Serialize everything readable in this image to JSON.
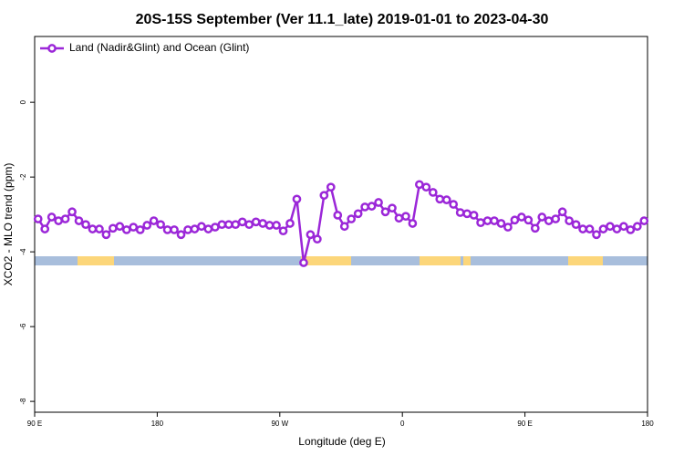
{
  "chart_data": {
    "type": "line",
    "title": "20S-15S September (Ver 11.1_late)   2019-01-01 to 2023-04-30",
    "x_label": "Longitude (deg E)",
    "y_label": "XCO2 - MLO trend (ppm)",
    "x": [
      92.5,
      97.5,
      102.5,
      107.5,
      112.5,
      117.5,
      122.5,
      127.5,
      132.5,
      137.5,
      142.5,
      147.5,
      152.5,
      157.5,
      162.5,
      167.5,
      172.5,
      177.5,
      182.5,
      187.5,
      192.5,
      197.5,
      202.5,
      207.5,
      212.5,
      217.5,
      222.5,
      227.5,
      232.5,
      237.5,
      242.5,
      247.5,
      252.5,
      257.5,
      262.5,
      267.5,
      272.5,
      277.5,
      282.5,
      287.5,
      292.5,
      297.5,
      302.5,
      307.5,
      312.5,
      317.5,
      322.5,
      327.5,
      332.5,
      337.5,
      342.5,
      347.5,
      352.5,
      357.5,
      362.5,
      367.5,
      372.5,
      377.5,
      382.5,
      387.5,
      392.5,
      397.5,
      402.5,
      407.5,
      412.5,
      417.5,
      422.5,
      427.5,
      432.5,
      437.5,
      442.5,
      447.5,
      452.5,
      457.5,
      462.5,
      467.5,
      472.5,
      477.5,
      482.5,
      487.5,
      492.5,
      497.5,
      502.5,
      507.5,
      512.5,
      517.5,
      522.5,
      527.5,
      532.5,
      537.5
    ],
    "series": [
      {
        "name": "Land (Nadir&Glint) and Ocean (Glint)",
        "color": "#9b27d8",
        "values": [
          -3.12,
          -3.39,
          -3.07,
          -3.17,
          -3.12,
          -2.93,
          -3.17,
          -3.27,
          -3.39,
          -3.39,
          -3.54,
          -3.37,
          -3.32,
          -3.41,
          -3.34,
          -3.41,
          -3.29,
          -3.17,
          -3.27,
          -3.41,
          -3.41,
          -3.54,
          -3.41,
          -3.39,
          -3.32,
          -3.39,
          -3.34,
          -3.27,
          -3.27,
          -3.27,
          -3.2,
          -3.27,
          -3.2,
          -3.24,
          -3.29,
          -3.29,
          -3.44,
          -3.24,
          -2.59,
          -4.29,
          -3.54,
          -3.66,
          -2.49,
          -2.27,
          -3.02,
          -3.32,
          -3.12,
          -2.98,
          -2.8,
          -2.78,
          -2.68,
          -2.93,
          -2.83,
          -3.1,
          -3.05,
          -3.24,
          -2.2,
          -2.27,
          -2.41,
          -2.59,
          -2.61,
          -2.73,
          -2.95,
          -2.98,
          -3.02,
          -3.22,
          -3.17,
          -3.17,
          -3.24,
          -3.34,
          -3.15,
          -3.07,
          -3.15,
          -3.37,
          -3.07,
          -3.17,
          -3.12,
          -2.93,
          -3.17,
          -3.27,
          -3.39,
          -3.39,
          -3.54,
          -3.39,
          -3.32,
          -3.39,
          -3.32,
          -3.41,
          -3.32,
          -3.17
        ]
      }
    ],
    "xlim": [
      90,
      540
    ],
    "xticks": [
      {
        "value": 90,
        "label": "90 E"
      },
      180,
      {
        "value": 270,
        "label": "90 W"
      },
      {
        "value": 360,
        "label": "0"
      },
      {
        "value": 450,
        "label": "90 E"
      },
      180.0001
    ],
    "ylim": [
      -8.29,
      1.76
    ],
    "yticks": [
      0,
      -2,
      -4,
      -6,
      -8
    ],
    "legend": "top-left",
    "grid": false
  }
}
